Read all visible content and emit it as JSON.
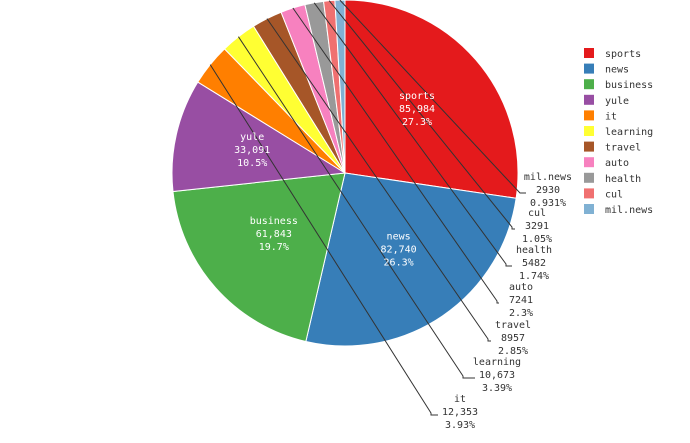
{
  "chart_data": {
    "type": "pie",
    "title": "",
    "legend_position": "right",
    "slices": [
      {
        "name": "sports",
        "value": "85,984",
        "number": 85984,
        "percent": "27.3%",
        "color": "#e41a1c"
      },
      {
        "name": "news",
        "value": "82,740",
        "number": 82740,
        "percent": "26.3%",
        "color": "#377eb8"
      },
      {
        "name": "business",
        "value": "61,843",
        "number": 61843,
        "percent": "19.7%",
        "color": "#4daf4a"
      },
      {
        "name": "yule",
        "value": "33,091",
        "number": 33091,
        "percent": "10.5%",
        "color": "#984ea3"
      },
      {
        "name": "it",
        "value": "12,353",
        "number": 12353,
        "percent": "3.93%",
        "color": "#ff7f00"
      },
      {
        "name": "learning",
        "value": "10,673",
        "number": 10673,
        "percent": "3.39%",
        "color": "#ffff33"
      },
      {
        "name": "travel",
        "value": "8957",
        "number": 8957,
        "percent": "2.85%",
        "color": "#a65628"
      },
      {
        "name": "auto",
        "value": "7241",
        "number": 7241,
        "percent": "2.3%",
        "color": "#f781bf"
      },
      {
        "name": "health",
        "value": "5482",
        "number": 5482,
        "percent": "1.74%",
        "color": "#999999"
      },
      {
        "name": "cul",
        "value": "3291",
        "number": 3291,
        "percent": "1.05%",
        "color": "#f07070"
      },
      {
        "name": "mil.news",
        "value": "2930",
        "number": 2930,
        "percent": "0.931%",
        "color": "#80b1d3"
      }
    ]
  }
}
